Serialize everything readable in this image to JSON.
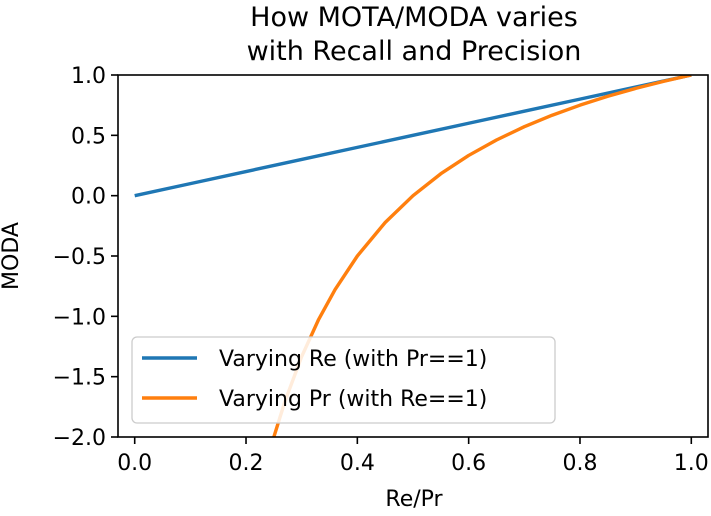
{
  "chart_data": {
    "type": "line",
    "title_lines": [
      "How MOTA/MODA varies",
      "with Recall and Precision"
    ],
    "xlabel": "Re/Pr",
    "ylabel": "MODA",
    "xlim": [
      -0.03,
      1.03
    ],
    "ylim": [
      -2.0,
      1.0
    ],
    "xticks": [
      0.0,
      0.2,
      0.4,
      0.6,
      0.8,
      1.0
    ],
    "xtick_labels": [
      "0.0",
      "0.2",
      "0.4",
      "0.6",
      "0.8",
      "1.0"
    ],
    "yticks": [
      1.0,
      0.5,
      0.0,
      -0.5,
      -1.0,
      -1.5,
      -2.0
    ],
    "ytick_labels": [
      "1.0",
      "0.5",
      "0.0",
      "−0.5",
      "−1.0",
      "−1.5",
      "−2.0"
    ],
    "grid": false,
    "legend_position": "lower-left",
    "series": [
      {
        "name": "Varying Re (with Pr==1)",
        "color": "#1f77b4",
        "x": [
          0.0,
          0.1,
          0.2,
          0.3,
          0.4,
          0.5,
          0.6,
          0.7,
          0.8,
          0.9,
          1.0
        ],
        "y": [
          0.0,
          0.1,
          0.2,
          0.3,
          0.4,
          0.5,
          0.6,
          0.7,
          0.8,
          0.9,
          1.0
        ]
      },
      {
        "name": "Varying Pr (with Re==1)",
        "color": "#ff7f0e",
        "x": [
          0.25,
          0.27,
          0.3,
          0.33,
          0.36,
          0.4,
          0.45,
          0.5,
          0.55,
          0.6,
          0.65,
          0.7,
          0.75,
          0.8,
          0.85,
          0.9,
          0.95,
          1.0
        ],
        "y": [
          -2.0,
          -1.7037,
          -1.3333,
          -1.0303,
          -0.7778,
          -0.5,
          -0.2222,
          0.0,
          0.1818,
          0.3333,
          0.4615,
          0.5714,
          0.6667,
          0.75,
          0.8235,
          0.8889,
          0.9474,
          1.0
        ]
      }
    ]
  }
}
